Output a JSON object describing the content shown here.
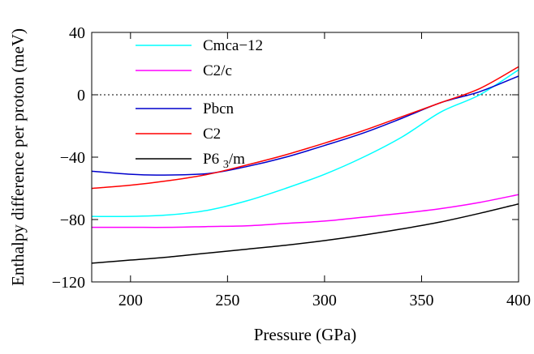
{
  "chart_data": {
    "type": "line",
    "title": "",
    "xlabel": "Pressure (GPa)",
    "ylabel": "Enthalpy difference per proton (meV)",
    "xlim": [
      180,
      400
    ],
    "ylim": [
      -120,
      40
    ],
    "x_ticks": [
      200,
      250,
      300,
      350,
      400
    ],
    "y_ticks": [
      40,
      0,
      -40,
      -80,
      -120
    ],
    "x_tick_labels": [
      "200",
      "250",
      "300",
      "350",
      "400"
    ],
    "y_tick_labels": [
      "40",
      "0",
      "−40",
      "−80",
      "−120"
    ],
    "reference_line": {
      "y": 0,
      "style": "dotted"
    },
    "legend_position": "top-left",
    "series": [
      {
        "name": "Cmca−12",
        "color": "#00ffff",
        "x": [
          180,
          200,
          220,
          240,
          260,
          280,
          300,
          320,
          340,
          360,
          380,
          400
        ],
        "y": [
          -78,
          -78,
          -77,
          -74,
          -68,
          -60,
          -51,
          -40,
          -27,
          -11,
          0,
          16
        ]
      },
      {
        "name": "C2/c",
        "color": "#ff00ff",
        "x": [
          180,
          200,
          220,
          240,
          260,
          280,
          300,
          320,
          340,
          360,
          380,
          400
        ],
        "y": [
          -85,
          -85,
          -85,
          -84.5,
          -84,
          -82.5,
          -81,
          -78.5,
          -76,
          -73,
          -69,
          -64
        ]
      },
      {
        "name": "Pbcn",
        "color": "#0000cc",
        "x": [
          180,
          200,
          215,
          240,
          260,
          280,
          300,
          320,
          340,
          360,
          380,
          400
        ],
        "y": [
          -49,
          -51,
          -51.5,
          -50.5,
          -46,
          -40,
          -32.5,
          -24.5,
          -15,
          -5,
          2,
          12
        ]
      },
      {
        "name": "C2",
        "color": "#ff0000",
        "x": [
          180,
          200,
          220,
          240,
          260,
          280,
          300,
          320,
          340,
          360,
          380,
          400
        ],
        "y": [
          -60,
          -58,
          -55,
          -51,
          -45,
          -38.5,
          -31,
          -23,
          -14,
          -5,
          4,
          18
        ]
      },
      {
        "name": "P6₃/m",
        "legend_main": "P6",
        "legend_sub": "3",
        "legend_tail": "/m",
        "color": "#000000",
        "x": [
          180,
          200,
          220,
          240,
          260,
          280,
          300,
          320,
          340,
          360,
          380,
          400
        ],
        "y": [
          -108,
          -106,
          -104,
          -101.5,
          -99,
          -96.5,
          -93.5,
          -90,
          -86,
          -81.5,
          -76,
          -70
        ]
      }
    ]
  }
}
